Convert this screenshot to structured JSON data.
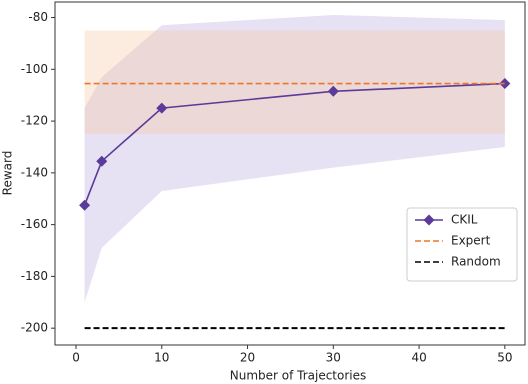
{
  "chart_data": {
    "type": "line",
    "xlabel": "Number of Trajectories",
    "ylabel": "Reward",
    "x": [
      1,
      3,
      10,
      30,
      50
    ],
    "xlim": [
      -2.45,
      52.35
    ],
    "ylim": [
      -206.5,
      -74
    ],
    "xticks": [
      0,
      10,
      20,
      30,
      40,
      50
    ],
    "yticks": [
      -200,
      -180,
      -160,
      -140,
      -120,
      -100,
      -80
    ],
    "legend": "lower right",
    "series": [
      {
        "name": "CKIL",
        "color": "#5b3a99",
        "marker": "diamond",
        "dash": "solid",
        "values": [
          -152.5,
          -135.5,
          -115,
          -108.5,
          -105.5
        ],
        "band_lower": [
          -190,
          -169,
          -147,
          -138,
          -130
        ],
        "band_upper": [
          -115,
          -103,
          -83,
          -79,
          -81
        ],
        "band_color": "#b7a9dc"
      },
      {
        "name": "Expert",
        "color": "#e8772e",
        "dash": "dashed",
        "values": [
          -105.5,
          -105.5,
          -105.5,
          -105.5,
          -105.5
        ],
        "band_lower": [
          -125,
          -125,
          -125,
          -125,
          -125
        ],
        "band_upper": [
          -85,
          -85,
          -85,
          -85,
          -85
        ],
        "band_color": "#f6c9a3"
      },
      {
        "name": "Random",
        "color": "#000000",
        "dash": "dashed",
        "values": [
          -200,
          -200,
          -200,
          -200,
          -200
        ]
      }
    ]
  }
}
